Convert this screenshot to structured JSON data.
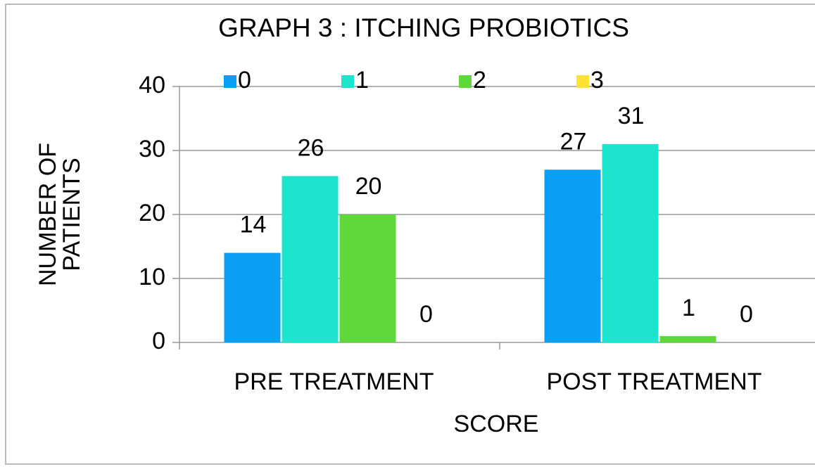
{
  "chart_data": {
    "type": "bar",
    "title": "GRAPH 3 : ITCHING PROBIOTICS",
    "x_label": "SCORE",
    "y_label": "NUMBER OF PATIENTS",
    "categories": [
      "PRE TREATMENT",
      "POST TREATMENT"
    ],
    "series": [
      {
        "name": "0",
        "color": "#0a9ff2",
        "values": [
          14,
          27
        ]
      },
      {
        "name": "1",
        "color": "#1ee3cd",
        "values": [
          26,
          31
        ]
      },
      {
        "name": "2",
        "color": "#5fd83a",
        "values": [
          20,
          1
        ]
      },
      {
        "name": "3",
        "color": "#fbe233",
        "values": [
          0,
          0
        ]
      }
    ],
    "ylim": [
      0,
      40
    ],
    "yticks": [
      0,
      10,
      20,
      30,
      40
    ],
    "grid": true,
    "legend": "top"
  }
}
